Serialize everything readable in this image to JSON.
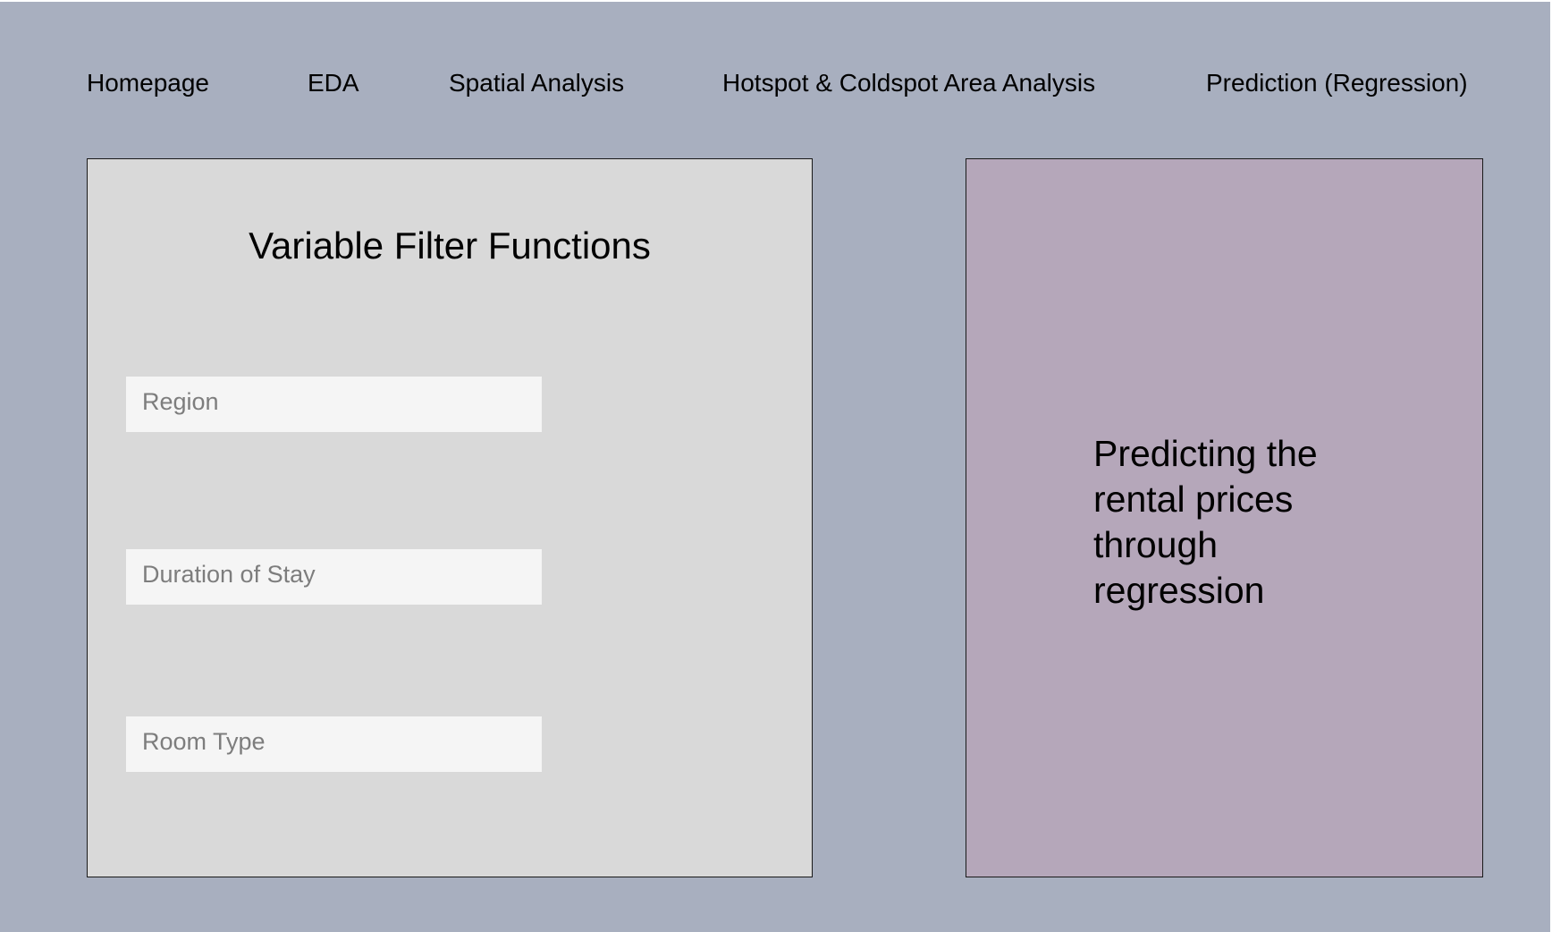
{
  "nav": {
    "items": [
      {
        "label": "Homepage"
      },
      {
        "label": "EDA"
      },
      {
        "label": "Spatial Analysis"
      },
      {
        "label": "Hotspot & Coldspot Area Analysis"
      },
      {
        "label": "Prediction (Regression)"
      }
    ]
  },
  "filters_panel": {
    "title": "Variable Filter Functions",
    "fields": [
      {
        "placeholder": "Region"
      },
      {
        "placeholder": "Duration of Stay"
      },
      {
        "placeholder": "Room Type"
      }
    ]
  },
  "info_panel": {
    "text": "Predicting the rental prices through regression"
  },
  "colors": {
    "background": "#a8afbf",
    "filter_panel": "#d9d9d9",
    "field": "#f5f5f5",
    "info_panel": "#b5a7ba"
  }
}
